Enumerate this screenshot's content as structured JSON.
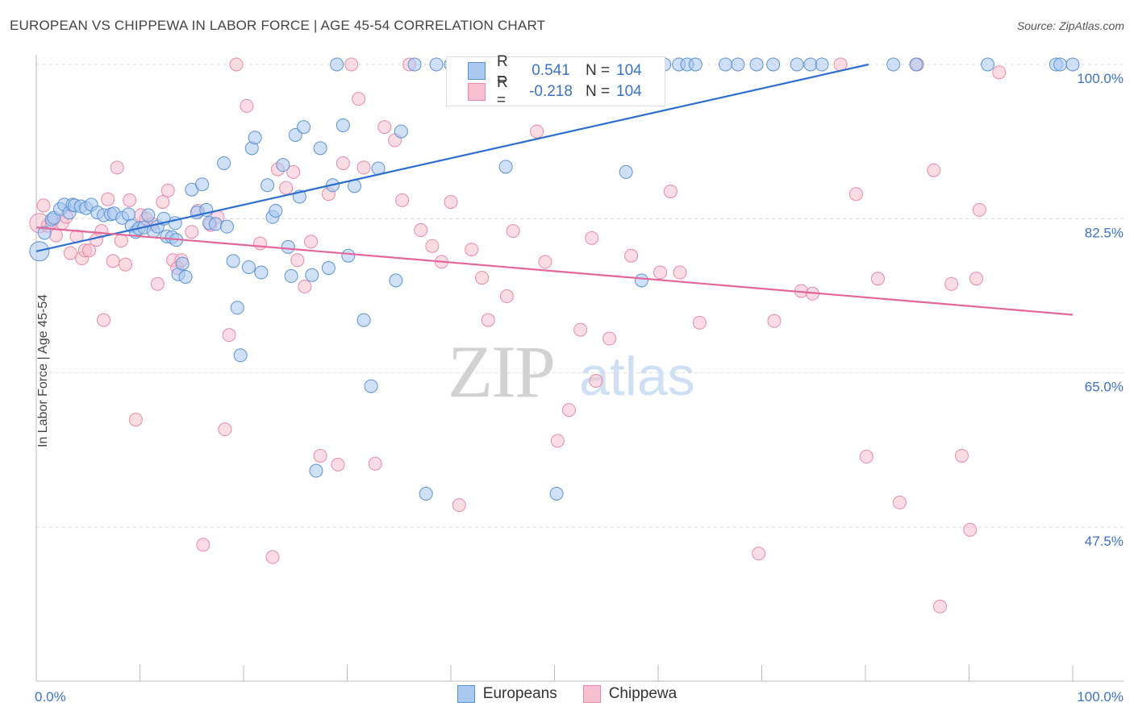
{
  "title": "EUROPEAN VS CHIPPEWA IN LABOR FORCE | AGE 45-54 CORRELATION CHART",
  "source": "Source: ZipAtlas.com",
  "watermark": {
    "zip": "ZIP",
    "atlas": "atlas"
  },
  "colors": {
    "blue_fill": "#a9c8f0",
    "blue_stroke": "#5b93d6",
    "blue_line": "#2d6fd0",
    "pink_fill": "#f6c0d0",
    "pink_stroke": "#e88aa6",
    "pink_line": "#e4679a",
    "value_text": "#3a73c9",
    "grid": "#dcdcdc",
    "axis": "#bbbbbb"
  },
  "legend": {
    "r_label": "R =",
    "n_label": "N =",
    "rows": [
      {
        "r": "0.541",
        "n": "104"
      },
      {
        "r": "-0.218",
        "n": "104"
      }
    ]
  },
  "chart_data": {
    "type": "scatter",
    "title": "EUROPEAN VS CHIPPEWA IN LABOR FORCE | AGE 45-54 CORRELATION CHART",
    "xlabel": "",
    "ylabel": "In Labor Force | Age 45-54",
    "xlim": [
      0,
      100
    ],
    "ylim": [
      30,
      102
    ],
    "x_tick_labels": [
      "0.0%",
      "100.0%"
    ],
    "y_ticks": [
      47.5,
      65.0,
      82.5,
      100.0
    ],
    "y_tick_labels": [
      "47.5%",
      "65.0%",
      "82.5%",
      "100.0%"
    ],
    "grid": true,
    "series": [
      {
        "name": "Europeans",
        "r": 0.541,
        "n": 104,
        "trend": [
          [
            0,
            78.8
          ],
          [
            80.3,
            100.0
          ]
        ],
        "points": [
          [
            0.3,
            78.8
          ],
          [
            0.8,
            80.9
          ],
          [
            1.5,
            82.4
          ],
          [
            1.7,
            82.6
          ],
          [
            2.3,
            83.6
          ],
          [
            2.7,
            84.1
          ],
          [
            3.2,
            83.2
          ],
          [
            3.5,
            84.1
          ],
          [
            3.7,
            84.0
          ],
          [
            4.3,
            83.9
          ],
          [
            4.8,
            83.7
          ],
          [
            5.3,
            84.1
          ],
          [
            5.9,
            83.2
          ],
          [
            6.5,
            82.9
          ],
          [
            7.2,
            83.0
          ],
          [
            7.5,
            83.1
          ],
          [
            8.3,
            82.6
          ],
          [
            8.9,
            83.0
          ],
          [
            9.2,
            81.7
          ],
          [
            9.6,
            81.0
          ],
          [
            9.9,
            81.4
          ],
          [
            10.4,
            81.5
          ],
          [
            10.8,
            82.9
          ],
          [
            11.3,
            81.1
          ],
          [
            11.7,
            81.6
          ],
          [
            12.3,
            82.5
          ],
          [
            12.6,
            80.5
          ],
          [
            13.1,
            80.4
          ],
          [
            13.4,
            82.0
          ],
          [
            13.5,
            80.1
          ],
          [
            13.7,
            76.2
          ],
          [
            14.1,
            77.4
          ],
          [
            14.4,
            75.9
          ],
          [
            15.0,
            85.8
          ],
          [
            15.5,
            83.2
          ],
          [
            16.0,
            86.4
          ],
          [
            16.4,
            83.5
          ],
          [
            16.7,
            82.0
          ],
          [
            17.3,
            81.9
          ],
          [
            18.1,
            88.8
          ],
          [
            18.4,
            81.6
          ],
          [
            19.0,
            77.7
          ],
          [
            19.4,
            72.4
          ],
          [
            19.7,
            67.0
          ],
          [
            20.5,
            77.0
          ],
          [
            20.8,
            90.5
          ],
          [
            21.1,
            91.7
          ],
          [
            21.7,
            76.4
          ],
          [
            22.3,
            86.3
          ],
          [
            22.8,
            82.7
          ],
          [
            23.1,
            83.4
          ],
          [
            23.8,
            88.6
          ],
          [
            24.3,
            79.3
          ],
          [
            24.6,
            76.0
          ],
          [
            25.0,
            92.0
          ],
          [
            25.4,
            85.0
          ],
          [
            25.8,
            92.9
          ],
          [
            26.6,
            76.1
          ],
          [
            27.0,
            53.9
          ],
          [
            27.4,
            90.5
          ],
          [
            28.2,
            76.9
          ],
          [
            28.6,
            86.3
          ],
          [
            29.0,
            100.0
          ],
          [
            29.6,
            93.1
          ],
          [
            30.1,
            78.3
          ],
          [
            30.7,
            86.2
          ],
          [
            31.6,
            71.0
          ],
          [
            32.3,
            63.5
          ],
          [
            33.0,
            88.2
          ],
          [
            34.7,
            75.5
          ],
          [
            35.2,
            92.4
          ],
          [
            36.5,
            100.0
          ],
          [
            37.6,
            51.3
          ],
          [
            38.6,
            100.0
          ],
          [
            40.0,
            100.0
          ],
          [
            41.4,
            100.0
          ],
          [
            42.8,
            100.0
          ],
          [
            44.0,
            100.0
          ],
          [
            45.3,
            88.4
          ],
          [
            47.3,
            100.0
          ],
          [
            49.0,
            100.0
          ],
          [
            50.2,
            51.3
          ],
          [
            52.4,
            100.0
          ],
          [
            54.2,
            100.0
          ],
          [
            55.1,
            100.0
          ],
          [
            56.9,
            87.8
          ],
          [
            58.4,
            75.5
          ],
          [
            60.6,
            100.0
          ],
          [
            62.0,
            100.0
          ],
          [
            62.8,
            100.0
          ],
          [
            63.6,
            100.0
          ],
          [
            66.5,
            100.0
          ],
          [
            67.7,
            100.0
          ],
          [
            69.5,
            100.0
          ],
          [
            71.1,
            100.0
          ],
          [
            73.4,
            100.0
          ],
          [
            74.7,
            100.0
          ],
          [
            75.8,
            100.0
          ],
          [
            82.7,
            100.0
          ],
          [
            84.9,
            100.0
          ],
          [
            91.8,
            100.0
          ],
          [
            98.4,
            100.0
          ],
          [
            98.8,
            100.0
          ],
          [
            100.0,
            100.0
          ]
        ]
      },
      {
        "name": "Chippewa",
        "r": -0.218,
        "n": 104,
        "trend": [
          [
            0,
            81.5
          ],
          [
            100,
            71.6
          ]
        ],
        "points": [
          [
            0.3,
            82.0
          ],
          [
            0.7,
            84.0
          ],
          [
            1.1,
            81.7
          ],
          [
            1.5,
            82.1
          ],
          [
            1.9,
            80.6
          ],
          [
            2.5,
            82.0
          ],
          [
            2.9,
            82.7
          ],
          [
            3.3,
            78.6
          ],
          [
            3.9,
            80.5
          ],
          [
            4.4,
            78.0
          ],
          [
            4.7,
            78.9
          ],
          [
            5.1,
            78.9
          ],
          [
            5.8,
            80.1
          ],
          [
            6.3,
            81.1
          ],
          [
            6.5,
            71.0
          ],
          [
            6.9,
            84.7
          ],
          [
            7.4,
            77.7
          ],
          [
            7.8,
            88.3
          ],
          [
            8.2,
            80.0
          ],
          [
            8.6,
            77.3
          ],
          [
            9.0,
            84.6
          ],
          [
            9.6,
            59.7
          ],
          [
            10.1,
            82.9
          ],
          [
            10.6,
            82.5
          ],
          [
            11.2,
            81.9
          ],
          [
            11.7,
            75.1
          ],
          [
            12.2,
            84.4
          ],
          [
            12.7,
            85.7
          ],
          [
            13.2,
            77.8
          ],
          [
            13.6,
            76.9
          ],
          [
            14.0,
            77.8
          ],
          [
            15.0,
            81.0
          ],
          [
            15.6,
            83.4
          ],
          [
            16.1,
            45.5
          ],
          [
            16.8,
            81.8
          ],
          [
            17.5,
            82.7
          ],
          [
            18.2,
            58.6
          ],
          [
            18.6,
            69.3
          ],
          [
            19.3,
            100.0
          ],
          [
            20.3,
            95.3
          ],
          [
            21.6,
            79.7
          ],
          [
            22.8,
            44.1
          ],
          [
            23.3,
            88.1
          ],
          [
            24.1,
            86.0
          ],
          [
            24.8,
            87.8
          ],
          [
            25.2,
            77.8
          ],
          [
            25.9,
            74.8
          ],
          [
            26.5,
            79.9
          ],
          [
            27.4,
            55.6
          ],
          [
            28.2,
            85.3
          ],
          [
            29.1,
            54.6
          ],
          [
            29.6,
            88.8
          ],
          [
            30.4,
            100.0
          ],
          [
            31.1,
            96.1
          ],
          [
            31.6,
            88.3
          ],
          [
            32.7,
            54.7
          ],
          [
            33.6,
            92.9
          ],
          [
            34.6,
            91.4
          ],
          [
            35.3,
            84.6
          ],
          [
            36.0,
            100.0
          ],
          [
            37.1,
            81.2
          ],
          [
            38.2,
            79.4
          ],
          [
            39.1,
            77.6
          ],
          [
            40.0,
            84.4
          ],
          [
            40.8,
            50.0
          ],
          [
            42.0,
            79.0
          ],
          [
            43.0,
            75.8
          ],
          [
            43.6,
            71.0
          ],
          [
            44.3,
            100.0
          ],
          [
            45.4,
            73.7
          ],
          [
            46.0,
            81.1
          ],
          [
            48.3,
            92.4
          ],
          [
            49.1,
            77.6
          ],
          [
            50.3,
            57.3
          ],
          [
            51.4,
            60.8
          ],
          [
            52.5,
            69.9
          ],
          [
            53.6,
            80.3
          ],
          [
            54.0,
            64.1
          ],
          [
            55.3,
            68.9
          ],
          [
            56.0,
            100.0
          ],
          [
            57.4,
            78.3
          ],
          [
            59.1,
            100.0
          ],
          [
            60.2,
            76.4
          ],
          [
            61.2,
            85.6
          ],
          [
            62.1,
            76.4
          ],
          [
            64.0,
            70.7
          ],
          [
            69.7,
            44.5
          ],
          [
            71.2,
            70.9
          ],
          [
            73.8,
            74.3
          ],
          [
            74.9,
            74.0
          ],
          [
            77.6,
            100.0
          ],
          [
            79.1,
            85.3
          ],
          [
            80.1,
            55.5
          ],
          [
            81.2,
            75.7
          ],
          [
            83.3,
            50.3
          ],
          [
            85.0,
            100.0
          ],
          [
            86.6,
            88.0
          ],
          [
            87.2,
            38.5
          ],
          [
            88.3,
            75.1
          ],
          [
            89.3,
            55.6
          ],
          [
            90.1,
            47.2
          ],
          [
            90.7,
            75.7
          ],
          [
            91.0,
            83.5
          ],
          [
            92.9,
            99.1
          ]
        ]
      }
    ]
  }
}
